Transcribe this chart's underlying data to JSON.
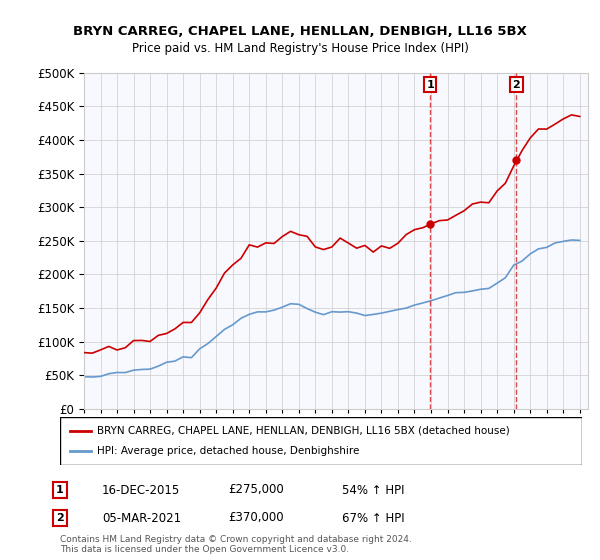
{
  "title": "BRYN CARREG, CHAPEL LANE, HENLLAN, DENBIGH, LL16 5BX",
  "subtitle": "Price paid vs. HM Land Registry's House Price Index (HPI)",
  "red_label": "BRYN CARREG, CHAPEL LANE, HENLLAN, DENBIGH, LL16 5BX (detached house)",
  "blue_label": "HPI: Average price, detached house, Denbighshire",
  "transaction1_date": "16-DEC-2015",
  "transaction1_price": 275000,
  "transaction1_pct": "54% ↑ HPI",
  "transaction2_date": "05-MAR-2021",
  "transaction2_price": 370000,
  "transaction2_pct": "67% ↑ HPI",
  "footnote": "Contains HM Land Registry data © Crown copyright and database right 2024.\nThis data is licensed under the Open Government Licence v3.0.",
  "ylim": [
    0,
    500000
  ],
  "yticks": [
    0,
    50000,
    100000,
    150000,
    200000,
    250000,
    300000,
    350000,
    400000,
    450000,
    500000
  ],
  "red_color": "#cc0000",
  "blue_color": "#6699cc",
  "marker1_x": 2015.96,
  "marker2_x": 2021.17,
  "background_color": "#ffffff",
  "grid_color": "#cccccc"
}
